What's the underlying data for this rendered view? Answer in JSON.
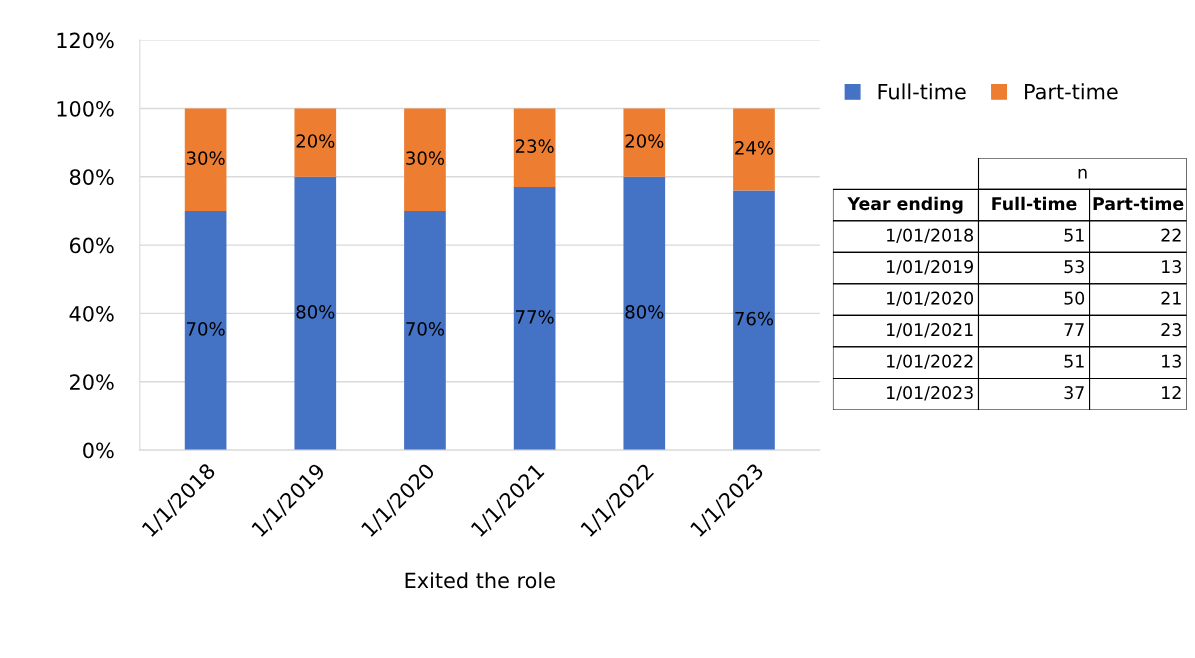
{
  "chart_data": [
    {
      "type": "bar",
      "stacked": true,
      "categories": [
        "1/1/2018",
        "1/1/2019",
        "1/1/2020",
        "1/1/2021",
        "1/1/2022",
        "1/1/2023"
      ],
      "series": [
        {
          "name": "Full-time",
          "color": "#4472c4",
          "values": [
            70,
            80,
            70,
            77,
            80,
            76
          ],
          "value_labels": [
            "70%",
            "80%",
            "70%",
            "77%",
            "80%",
            "76%"
          ]
        },
        {
          "name": "Part-time",
          "color": "#ed7d31",
          "values": [
            30,
            20,
            30,
            23,
            20,
            24
          ],
          "value_labels": [
            "30%",
            "20%",
            "30%",
            "23%",
            "20%",
            "24%"
          ]
        }
      ],
      "ylim": [
        0,
        120
      ],
      "yticks": [
        {
          "value": 0,
          "label": "0%"
        },
        {
          "value": 20,
          "label": "20%"
        },
        {
          "value": 40,
          "label": "40%"
        },
        {
          "value": 60,
          "label": "60%"
        },
        {
          "value": 80,
          "label": "80%"
        },
        {
          "value": 100,
          "label": "100%"
        },
        {
          "value": 120,
          "label": "120%"
        }
      ],
      "xlabel": "Exited the role",
      "grid": "y",
      "legend": "right"
    },
    {
      "type": "other",
      "title": "n",
      "ylabel": "Year ending",
      "categories": [
        "Full-time",
        "Part-time"
      ],
      "y_categories": [
        "1/01/2018",
        "1/01/2019",
        "1/01/2020",
        "1/01/2021",
        "1/01/2022",
        "1/01/2023"
      ],
      "cell_labels": [
        [
          "51",
          "22"
        ],
        [
          "53",
          "13"
        ],
        [
          "50",
          "21"
        ],
        [
          "77",
          "23"
        ],
        [
          "51",
          "13"
        ],
        [
          "37",
          "12"
        ]
      ]
    }
  ]
}
